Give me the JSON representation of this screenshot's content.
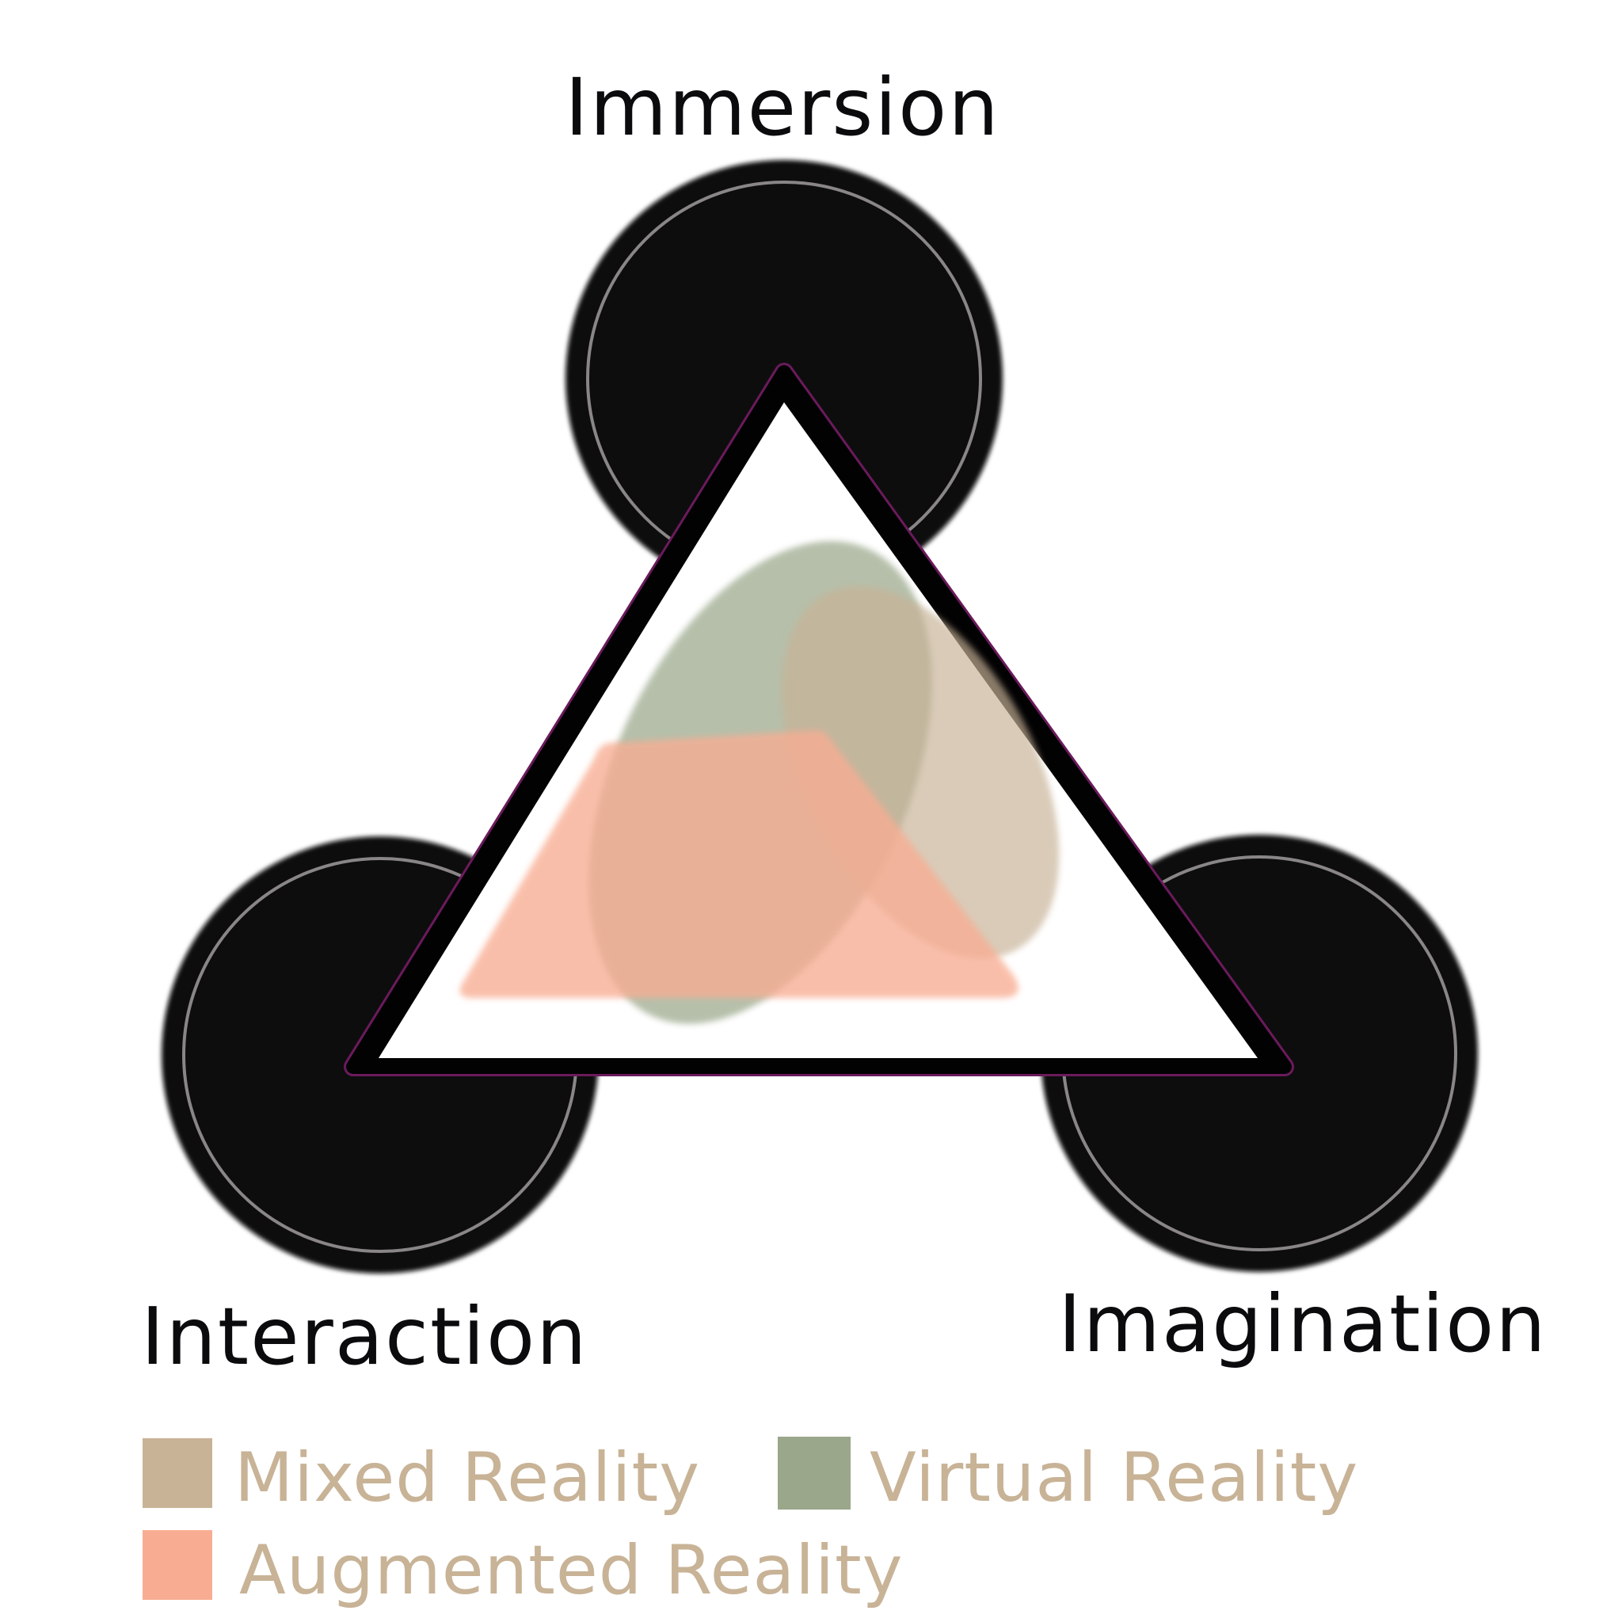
{
  "vertices": {
    "top": "Immersion",
    "left": "Interaction",
    "right": "Imagination"
  },
  "colors": {
    "circle_fill": "#0b090c",
    "circle_ring": "#8a8688",
    "triangle_stroke": "#030203",
    "triangle_edge": "#6b1a5c",
    "mixed_reality": "#c8b397",
    "virtual_reality": "#9aa78a",
    "augmented_reality": "#f8ad93",
    "legend_text": "#c8b397"
  },
  "legend": {
    "mixed": {
      "label": "Mixed Reality",
      "color": "#c8b397"
    },
    "virtual": {
      "label": "Virtual Reality",
      "color": "#9aa78a"
    },
    "augmented": {
      "label": "Augmented Reality",
      "color": "#f8ad93"
    }
  }
}
